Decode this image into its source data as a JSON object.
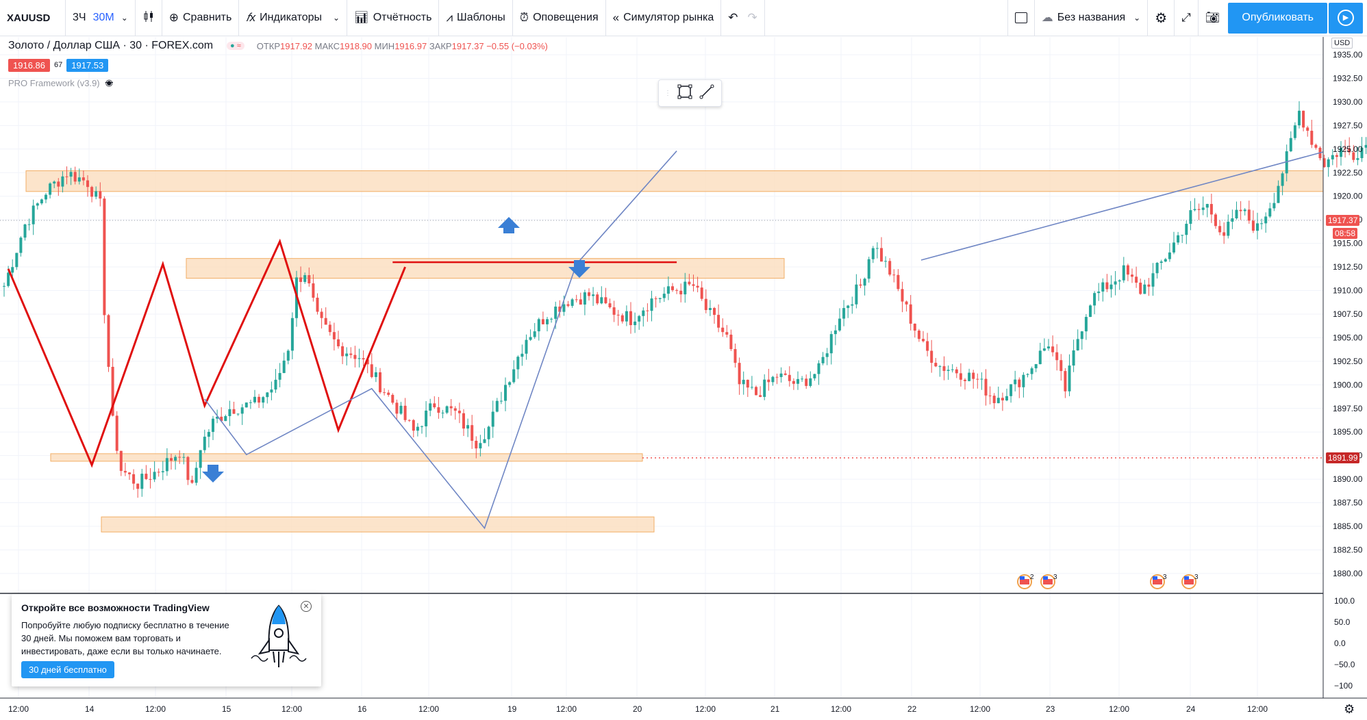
{
  "toolbar": {
    "symbol": "XAUUSD",
    "intervals": [
      "3Ч",
      "30М"
    ],
    "compare": "Сравнить",
    "indicators": "Индикаторы",
    "reports": "Отчётность",
    "templates": "Шаблоны",
    "alerts": "Оповещения",
    "replay": "Симулятор рынка",
    "layout_name": "Без названия",
    "publish": "Опубликовать"
  },
  "legend": {
    "title": "Золото / Доллар США · 30 · FOREX.com",
    "open_label": "ОТКР",
    "open": "1917.92",
    "high_label": "МАКС",
    "high": "1918.90",
    "low_label": "МИН",
    "low": "1916.97",
    "close_label": "ЗАКР",
    "close": "1917.37",
    "change": "−0.55 (−0.03%)",
    "bid": "1916.86",
    "spread": "67",
    "ask": "1917.53",
    "indicator": "PRO Framework (v3.9)"
  },
  "colors": {
    "accent": "#2196f3",
    "up": "#26a69a",
    "down": "#ef5350",
    "zone_fill": "#fce0c2",
    "zone_border": "#f0a04b",
    "pattern": "#e01010",
    "projection": "#6f86c4"
  },
  "chart_data": {
    "type": "candlestick",
    "symbol": "XAUUSD",
    "price_axis": {
      "ticks": [
        1935.0,
        1932.5,
        1930.0,
        1927.5,
        1925.0,
        1922.5,
        1920.0,
        1917.5,
        1915.0,
        1912.5,
        1910.0,
        1907.5,
        1905.0,
        1902.5,
        1900.0,
        1897.5,
        1895.0,
        1892.5,
        1890.0,
        1887.5,
        1885.0,
        1882.5,
        1880.0
      ],
      "unit": "USD",
      "range": [
        1878.8,
        1936.2
      ]
    },
    "time_axis": [
      "12:00",
      "14",
      "12:00",
      "15",
      "12:00",
      "16",
      "12:00",
      "19",
      "12:00",
      "20",
      "12:00",
      "21",
      "12:00",
      "22",
      "12:00",
      "23",
      "12:00",
      "24",
      "12:00"
    ],
    "last_price": "1917.37",
    "countdown": "08:58",
    "ref_price": "1891.99",
    "oscillator_axis": [
      "100.0",
      "50.0",
      "0.0",
      "−50.0",
      "−100"
    ],
    "event_badges": [
      "2",
      "3",
      "3",
      "3"
    ],
    "close_path": [
      [
        0,
        1910.5
      ],
      [
        5,
        1917
      ],
      [
        10,
        1920.5
      ],
      [
        15,
        1922.5
      ],
      [
        20,
        1921.5
      ],
      [
        23,
        1919
      ],
      [
        24,
        1908
      ],
      [
        26,
        1896
      ],
      [
        28,
        1891
      ],
      [
        32,
        1889.5
      ],
      [
        37,
        1891
      ],
      [
        42,
        1893
      ],
      [
        45,
        1889
      ],
      [
        47,
        1893.5
      ],
      [
        50,
        1896
      ],
      [
        54,
        1897.5
      ],
      [
        60,
        1898
      ],
      [
        65,
        1900
      ],
      [
        68,
        1904
      ],
      [
        70,
        1911
      ],
      [
        72,
        1912
      ],
      [
        75,
        1907
      ],
      [
        80,
        1904
      ],
      [
        85,
        1903
      ],
      [
        90,
        1900
      ],
      [
        95,
        1897
      ],
      [
        98,
        1895
      ],
      [
        103,
        1898
      ],
      [
        108,
        1897
      ],
      [
        113,
        1894
      ],
      [
        116,
        1895.5
      ],
      [
        120,
        1900
      ],
      [
        125,
        1905
      ],
      [
        130,
        1907.5
      ],
      [
        135,
        1909
      ],
      [
        140,
        1909.5
      ],
      [
        145,
        1908
      ],
      [
        150,
        1907
      ],
      [
        155,
        1909
      ],
      [
        160,
        1910
      ],
      [
        165,
        1910.5
      ],
      [
        168,
        1908
      ],
      [
        173,
        1905
      ],
      [
        176,
        1900
      ],
      [
        180,
        1899
      ],
      [
        185,
        1901
      ],
      [
        190,
        1900
      ],
      [
        195,
        1901.5
      ],
      [
        200,
        1907.5
      ],
      [
        205,
        1910.5
      ],
      [
        208,
        1915
      ],
      [
        212,
        1912
      ],
      [
        216,
        1908
      ],
      [
        220,
        1904
      ],
      [
        224,
        1902
      ],
      [
        228,
        1901.5
      ],
      [
        233,
        1900.5
      ],
      [
        237,
        1898.5
      ],
      [
        242,
        1900
      ],
      [
        246,
        1902
      ],
      [
        250,
        1904.5
      ],
      [
        254,
        1899.5
      ],
      [
        257,
        1905
      ],
      [
        260,
        1909
      ],
      [
        264,
        1910.5
      ],
      [
        268,
        1912
      ],
      [
        272,
        1910
      ],
      [
        275,
        1911.5
      ],
      [
        280,
        1915
      ],
      [
        284,
        1918
      ],
      [
        288,
        1919
      ],
      [
        292,
        1916
      ],
      [
        296,
        1918.5
      ],
      [
        300,
        1916.5
      ],
      [
        304,
        1920
      ],
      [
        307,
        1924
      ],
      [
        310,
        1929
      ],
      [
        313,
        1926
      ],
      [
        316,
        1923.5
      ],
      [
        320,
        1925
      ],
      [
        323,
        1924.5
      ],
      [
        326,
        1925.5
      ],
      [
        329,
        1922
      ],
      [
        332,
        1919
      ],
      [
        335,
        1914
      ],
      [
        338,
        1913.5
      ],
      [
        341,
        1915
      ],
      [
        344,
        1919
      ],
      [
        347,
        1920
      ],
      [
        350,
        1917.5
      ]
    ],
    "zones": [
      {
        "from_price": 1920.5,
        "to_price": 1922.7
      },
      {
        "from_price": 1911.3,
        "to_price": 1913.4
      },
      {
        "from_price": 1891.9,
        "to_price": 1892.7
      },
      {
        "from_price": 1884.4,
        "to_price": 1886.0
      }
    ],
    "pattern_lines": [
      [
        [
          1,
          1912.3
        ],
        [
          21,
          1891.5
        ],
        [
          38,
          1912.8
        ],
        [
          48,
          1897.8
        ],
        [
          66,
          1915.2
        ],
        [
          80,
          1895.2
        ],
        [
          96,
          1912.5
        ]
      ],
      [
        [
          93,
          1913.0
        ],
        [
          161,
          1913.0
        ]
      ]
    ],
    "projection_lines": [
      [
        [
          48,
          1898.5
        ],
        [
          58,
          1892.6
        ],
        [
          88,
          1899.6
        ],
        [
          115,
          1884.8
        ],
        [
          137,
          1912.8
        ],
        [
          161,
          1924.8
        ]
      ]
    ]
  },
  "promo": {
    "title": "Откройте все возможности TradingView",
    "text": "Попробуйте любую подписку бесплатно в течение 30 дней. Мы поможем вам торговать и инвестировать, даже если вы только начинаете.",
    "button": "30 дней бесплатно"
  }
}
